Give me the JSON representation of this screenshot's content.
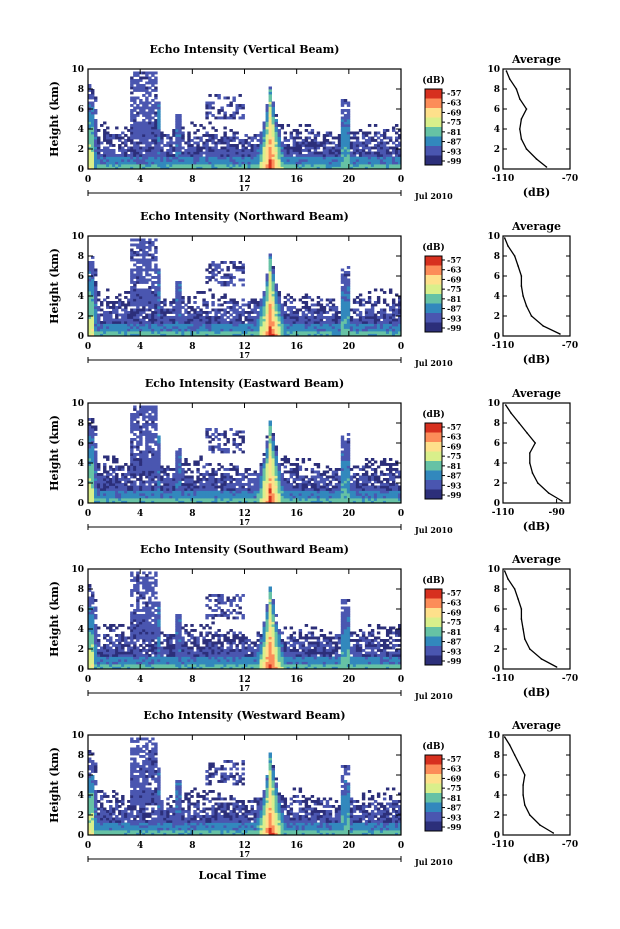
{
  "figure": {
    "x_axis_label": "Local Time",
    "date_label": "Jul 2010",
    "day_label": "17",
    "x_ticks": [
      "0",
      "4",
      "8",
      "12",
      "16",
      "20",
      "0"
    ],
    "y_axis_label": "Height (km)",
    "y_ticks": [
      "0",
      "2",
      "4",
      "6",
      "8",
      "10"
    ],
    "colorbar_unit": "(dB)",
    "colorbar_ticks": [
      "-57",
      "-63",
      "-69",
      "-75",
      "-81",
      "-87",
      "-93",
      "-99"
    ],
    "colorbar_colors": [
      "#d7301f",
      "#fc8d59",
      "#fee08b",
      "#d9ef8b",
      "#66c2a5",
      "#3288bd",
      "#4a56b0",
      "#2c2f7a"
    ],
    "profile_title": "Average",
    "profile_xlabel": "(dB)",
    "colors": {
      "background": "#ffffff",
      "axes": "#000000",
      "missing": "#ffffff"
    }
  },
  "chart_data": [
    {
      "type": "heatmap",
      "title": "Echo Intensity (Vertical Beam)",
      "x_range_hours": [
        0,
        24
      ],
      "y_range_km": [
        0,
        10
      ],
      "color_scale_db": [
        -99,
        -57
      ],
      "profile": {
        "type": "line",
        "x_ticks": [
          "-110",
          "-70"
        ],
        "xlim": [
          -110,
          -70
        ],
        "points": [
          [
            -84,
            0.2
          ],
          [
            -90,
            1
          ],
          [
            -96,
            2
          ],
          [
            -99,
            3
          ],
          [
            -100,
            4
          ],
          [
            -99,
            5
          ],
          [
            -96,
            6
          ],
          [
            -100,
            7
          ],
          [
            -102,
            8
          ],
          [
            -106,
            9
          ],
          [
            -108,
            9.8
          ]
        ]
      }
    },
    {
      "type": "heatmap",
      "title": "Echo Intensity (Northward Beam)",
      "x_range_hours": [
        0,
        24
      ],
      "y_range_km": [
        0,
        10
      ],
      "color_scale_db": [
        -99,
        -57
      ],
      "profile": {
        "type": "line",
        "x_ticks": [
          "-110",
          "-70"
        ],
        "xlim": [
          -110,
          -70
        ],
        "points": [
          [
            -76,
            0.2
          ],
          [
            -86,
            1
          ],
          [
            -93,
            2
          ],
          [
            -96,
            3
          ],
          [
            -98,
            4
          ],
          [
            -99,
            5
          ],
          [
            -99,
            6
          ],
          [
            -101,
            7
          ],
          [
            -103,
            8
          ],
          [
            -107,
            9
          ],
          [
            -109,
            9.8
          ]
        ]
      }
    },
    {
      "type": "heatmap",
      "title": "Echo Intensity (Eastward Beam)",
      "x_range_hours": [
        0,
        24
      ],
      "y_range_km": [
        0,
        10
      ],
      "color_scale_db": [
        -99,
        -57
      ],
      "profile": {
        "type": "line",
        "x_ticks": [
          "-110",
          "-90"
        ],
        "xlim": [
          -110,
          -85
        ],
        "points": [
          [
            -88,
            0.2
          ],
          [
            -93,
            1
          ],
          [
            -97,
            2
          ],
          [
            -99,
            3
          ],
          [
            -100,
            4
          ],
          [
            -100,
            5
          ],
          [
            -98,
            6
          ],
          [
            -101,
            7
          ],
          [
            -104,
            8
          ],
          [
            -107,
            9
          ],
          [
            -109,
            9.8
          ]
        ]
      }
    },
    {
      "type": "heatmap",
      "title": "Echo Intensity (Southward Beam)",
      "x_range_hours": [
        0,
        24
      ],
      "y_range_km": [
        0,
        10
      ],
      "color_scale_db": [
        -99,
        -57
      ],
      "profile": {
        "type": "line",
        "x_ticks": [
          "-110",
          "-70"
        ],
        "xlim": [
          -110,
          -70
        ],
        "points": [
          [
            -78,
            0.2
          ],
          [
            -87,
            1
          ],
          [
            -94,
            2
          ],
          [
            -97,
            3
          ],
          [
            -98,
            4
          ],
          [
            -99,
            5
          ],
          [
            -99,
            6
          ],
          [
            -101,
            7
          ],
          [
            -103,
            8
          ],
          [
            -107,
            9
          ],
          [
            -109,
            9.8
          ]
        ]
      }
    },
    {
      "type": "heatmap",
      "title": "Echo Intensity (Westward Beam)",
      "x_range_hours": [
        0,
        24
      ],
      "y_range_km": [
        0,
        10
      ],
      "color_scale_db": [
        -99,
        -57
      ],
      "profile": {
        "type": "line",
        "x_ticks": [
          "-110",
          "-70"
        ],
        "xlim": [
          -110,
          -70
        ],
        "points": [
          [
            -80,
            0.2
          ],
          [
            -88,
            1
          ],
          [
            -94,
            2
          ],
          [
            -97,
            3
          ],
          [
            -98,
            4
          ],
          [
            -98,
            5
          ],
          [
            -97,
            6
          ],
          [
            -100,
            7
          ],
          [
            -103,
            8
          ],
          [
            -106,
            9
          ],
          [
            -109,
            9.8
          ]
        ]
      }
    }
  ]
}
